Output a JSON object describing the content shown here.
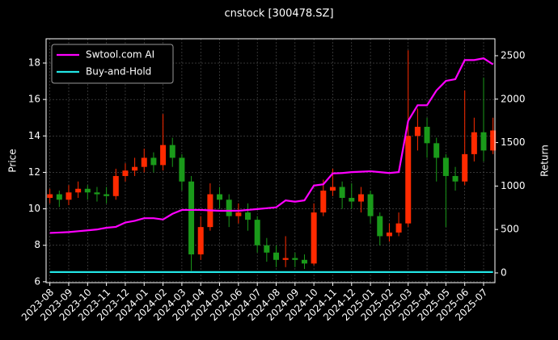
{
  "chart_data": {
    "type": "candlestick",
    "title": "cnstock [300478.SZ]",
    "ylabel": "Price",
    "y2label": "Return",
    "x": [
      0,
      0.5,
      1,
      1.5,
      2,
      2.5,
      3,
      3.5,
      4,
      4.5,
      5,
      5.5,
      6,
      6.5,
      7,
      7.5,
      8,
      8.5,
      9,
      9.5,
      10,
      10.5,
      11,
      11.5,
      12,
      12.5,
      13,
      13.5,
      14,
      14.5,
      15,
      15.5,
      16,
      16.5,
      17,
      17.5,
      18,
      18.5,
      19,
      19.5,
      20,
      20.5,
      21,
      21.5,
      22,
      22.5,
      23,
      23.5
    ],
    "candles": {
      "up_color": "#ff2a00",
      "down_color": "#1a9a1a",
      "open": [
        10.6,
        10.8,
        10.5,
        10.9,
        11.1,
        10.9,
        10.8,
        10.7,
        11.8,
        12.1,
        12.3,
        12.8,
        12.4,
        13.5,
        12.8,
        11.5,
        7.5,
        9.0,
        10.8,
        10.5,
        9.6,
        9.8,
        9.4,
        8.0,
        7.6,
        7.2,
        7.3,
        7.2,
        7.0,
        9.8,
        11.0,
        11.2,
        10.6,
        10.4,
        10.8,
        9.6,
        8.5,
        8.7,
        9.2,
        14.0,
        14.5,
        13.6,
        12.8,
        11.8,
        11.5,
        13.0,
        14.2,
        13.2
      ],
      "high": [
        11.1,
        11.0,
        11.3,
        11.5,
        11.3,
        11.2,
        11.2,
        12.2,
        12.5,
        12.8,
        13.3,
        13.1,
        15.2,
        13.9,
        13.0,
        11.8,
        9.6,
        11.4,
        11.2,
        10.8,
        10.3,
        10.3,
        9.6,
        8.4,
        8.0,
        8.5,
        7.6,
        7.5,
        10.3,
        11.6,
        12.2,
        11.5,
        11.4,
        11.2,
        11.0,
        9.8,
        9.2,
        9.8,
        18.7,
        15.5,
        15.0,
        13.9,
        13.0,
        12.3,
        16.5,
        15.0,
        17.2,
        15.0
      ],
      "low": [
        10.3,
        10.1,
        10.2,
        10.6,
        10.5,
        10.4,
        10.3,
        10.5,
        11.5,
        11.8,
        12.0,
        12.0,
        12.1,
        12.3,
        11.0,
        6.6,
        7.2,
        8.8,
        10.0,
        9.0,
        9.2,
        8.8,
        7.6,
        7.1,
        6.8,
        6.8,
        6.8,
        6.7,
        6.9,
        9.6,
        10.7,
        10.0,
        10.0,
        9.8,
        9.2,
        8.0,
        8.2,
        8.5,
        9.0,
        13.2,
        12.8,
        11.5,
        9.0,
        11.0,
        11.3,
        12.6,
        12.6,
        13.0
      ],
      "close": [
        10.8,
        10.5,
        10.9,
        11.1,
        10.9,
        10.8,
        10.7,
        11.8,
        12.1,
        12.3,
        12.8,
        12.4,
        13.5,
        12.8,
        11.5,
        7.5,
        9.0,
        10.8,
        10.5,
        9.6,
        9.8,
        9.4,
        8.0,
        7.6,
        7.2,
        7.3,
        7.2,
        7.0,
        9.8,
        11.0,
        11.2,
        10.6,
        10.4,
        10.8,
        9.6,
        8.5,
        8.7,
        9.2,
        14.0,
        14.5,
        13.6,
        12.8,
        11.8,
        11.5,
        13.0,
        14.2,
        13.2,
        14.3
      ]
    },
    "series": [
      {
        "name": "Swtool.com AI",
        "color": "#ff00ff",
        "axis": "y2",
        "values": [
          460,
          465,
          470,
          480,
          490,
          500,
          520,
          530,
          580,
          600,
          630,
          630,
          615,
          680,
          725,
          725,
          725,
          720,
          715,
          715,
          715,
          725,
          735,
          745,
          755,
          835,
          820,
          835,
          1005,
          1020,
          1145,
          1150,
          1160,
          1165,
          1170,
          1160,
          1150,
          1160,
          1750,
          1930,
          1930,
          2100,
          2210,
          2230,
          2450,
          2450,
          2470,
          2400
        ]
      },
      {
        "name": "Buy-and-Hold",
        "color": "#22e5e5",
        "axis": "y2",
        "values": [
          10,
          10,
          10,
          10,
          10,
          10,
          10,
          10,
          10,
          10,
          10,
          10,
          10,
          10,
          10,
          10,
          10,
          10,
          10,
          10,
          10,
          10,
          10,
          10,
          10,
          10,
          10,
          10,
          10,
          10,
          10,
          10,
          10,
          10,
          10,
          10,
          10,
          10,
          10,
          10,
          10,
          10,
          10,
          10,
          10,
          10,
          10,
          10
        ]
      }
    ],
    "xlim": [
      -0.2,
      23.6
    ],
    "xticks": [
      {
        "value": 0,
        "label": "2023-08"
      },
      {
        "value": 1,
        "label": "2023-09"
      },
      {
        "value": 2,
        "label": "2023-10"
      },
      {
        "value": 3,
        "label": "2023-11"
      },
      {
        "value": 4,
        "label": "2023-12"
      },
      {
        "value": 5,
        "label": "2024-01"
      },
      {
        "value": 6,
        "label": "2024-02"
      },
      {
        "value": 7,
        "label": "2024-03"
      },
      {
        "value": 8,
        "label": "2024-04"
      },
      {
        "value": 9,
        "label": "2024-05"
      },
      {
        "value": 10,
        "label": "2024-06"
      },
      {
        "value": 11,
        "label": "2024-07"
      },
      {
        "value": 12,
        "label": "2024-08"
      },
      {
        "value": 13,
        "label": "2024-09"
      },
      {
        "value": 14,
        "label": "2024-10"
      },
      {
        "value": 15,
        "label": "2024-11"
      },
      {
        "value": 16,
        "label": "2024-12"
      },
      {
        "value": 17,
        "label": "2025-01"
      },
      {
        "value": 18,
        "label": "2025-02"
      },
      {
        "value": 19,
        "label": "2025-03"
      },
      {
        "value": 20,
        "label": "2025-04"
      },
      {
        "value": 21,
        "label": "2025-05"
      },
      {
        "value": 22,
        "label": "2025-06"
      },
      {
        "value": 23,
        "label": "2025-07"
      }
    ],
    "ylim": [
      5.95,
      19.33
    ],
    "yticks": [
      6,
      8,
      10,
      12,
      14,
      16,
      18
    ],
    "y2lim": [
      -112,
      2695
    ],
    "y2ticks": [
      0,
      500,
      1000,
      1500,
      2000,
      2500
    ],
    "grid": true,
    "legend": "upper left"
  }
}
